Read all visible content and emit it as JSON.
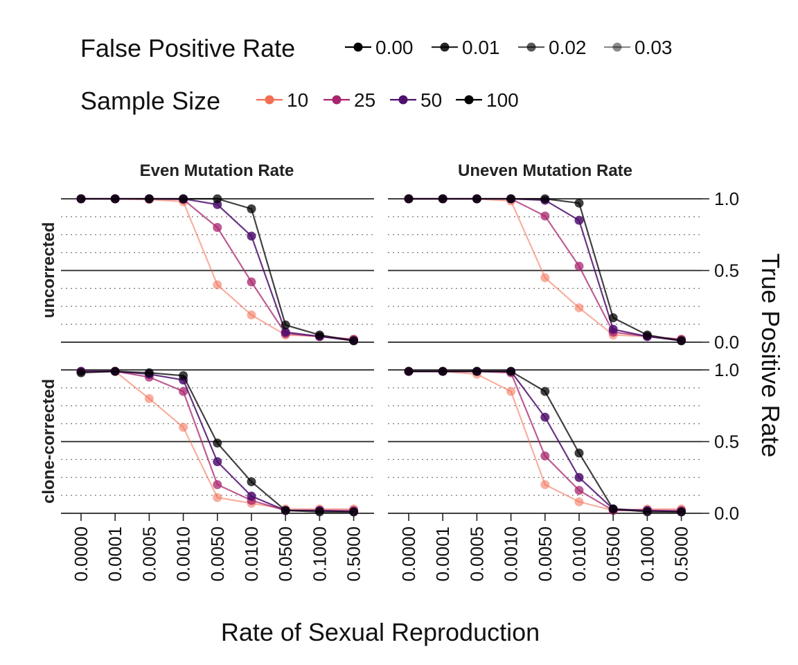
{
  "chart_data": {
    "type": "line",
    "x_axis_title": "Rate of Sexual Reproduction",
    "y_axis_title": "True Positive Rate",
    "x_categories": [
      "0.0000",
      "0.0001",
      "0.0005",
      "0.0010",
      "0.0050",
      "0.0100",
      "0.0500",
      "0.1000",
      "0.5000"
    ],
    "ylim": [
      0,
      1
    ],
    "y_ticks": [
      "0.0",
      "0.5",
      "1.0"
    ],
    "y_tick_values": [
      0,
      0.5,
      1
    ],
    "minor_grid_step": 0.125,
    "legend_position": "top",
    "legends": {
      "false_positive_rate": {
        "title": "False Positive Rate",
        "entries": [
          "0.00",
          "0.01",
          "0.02",
          "0.03"
        ],
        "opacities": [
          1.0,
          0.85,
          0.65,
          0.45
        ]
      },
      "sample_size": {
        "title": "Sample Size",
        "entries": [
          "10",
          "25",
          "50",
          "100"
        ],
        "colors": [
          "#F36E52",
          "#A8246E",
          "#4F0F6E",
          "#000000"
        ]
      }
    },
    "columns": [
      "Even Mutation Rate",
      "Uneven Mutation Rate"
    ],
    "rows": [
      "uncorrected",
      "clone-corrected"
    ],
    "panels": [
      {
        "row": "uncorrected",
        "column": "Even Mutation Rate",
        "series": [
          {
            "sample_size": "10",
            "values": [
              1.0,
              1.0,
              0.995,
              0.98,
              0.4,
              0.19,
              0.05,
              0.04,
              0.02
            ]
          },
          {
            "sample_size": "25",
            "values": [
              1.0,
              1.0,
              1.0,
              0.995,
              0.8,
              0.42,
              0.06,
              0.04,
              0.02
            ]
          },
          {
            "sample_size": "50",
            "values": [
              1.0,
              1.0,
              1.0,
              1.0,
              0.96,
              0.74,
              0.07,
              0.04,
              0.01
            ]
          },
          {
            "sample_size": "100",
            "values": [
              1.0,
              1.0,
              1.0,
              1.0,
              1.0,
              0.93,
              0.12,
              0.05,
              0.01
            ]
          }
        ]
      },
      {
        "row": "uncorrected",
        "column": "Uneven Mutation Rate",
        "series": [
          {
            "sample_size": "10",
            "values": [
              1.0,
              1.0,
              1.0,
              0.985,
              0.45,
              0.24,
              0.05,
              0.04,
              0.02
            ]
          },
          {
            "sample_size": "25",
            "values": [
              1.0,
              1.0,
              1.0,
              1.0,
              0.88,
              0.53,
              0.07,
              0.04,
              0.02
            ]
          },
          {
            "sample_size": "50",
            "values": [
              1.0,
              1.0,
              1.0,
              1.0,
              0.99,
              0.85,
              0.09,
              0.04,
              0.01
            ]
          },
          {
            "sample_size": "100",
            "values": [
              1.0,
              1.0,
              1.0,
              1.0,
              1.0,
              0.97,
              0.17,
              0.05,
              0.01
            ]
          }
        ]
      },
      {
        "row": "clone-corrected",
        "column": "Even Mutation Rate",
        "series": [
          {
            "sample_size": "10",
            "values": [
              0.99,
              0.99,
              0.8,
              0.6,
              0.11,
              0.07,
              0.03,
              0.03,
              0.03
            ]
          },
          {
            "sample_size": "25",
            "values": [
              0.99,
              0.99,
              0.95,
              0.85,
              0.2,
              0.09,
              0.02,
              0.02,
              0.02
            ]
          },
          {
            "sample_size": "50",
            "values": [
              0.99,
              0.99,
              0.97,
              0.93,
              0.36,
              0.12,
              0.02,
              0.02,
              0.01
            ]
          },
          {
            "sample_size": "100",
            "values": [
              0.98,
              0.99,
              0.98,
              0.96,
              0.49,
              0.22,
              0.02,
              0.01,
              0.01
            ]
          }
        ]
      },
      {
        "row": "clone-corrected",
        "column": "Uneven Mutation Rate",
        "series": [
          {
            "sample_size": "10",
            "values": [
              0.99,
              0.99,
              0.97,
              0.85,
              0.2,
              0.08,
              0.02,
              0.03,
              0.03
            ]
          },
          {
            "sample_size": "25",
            "values": [
              0.99,
              0.99,
              0.99,
              0.98,
              0.4,
              0.16,
              0.02,
              0.02,
              0.02
            ]
          },
          {
            "sample_size": "50",
            "values": [
              0.99,
              0.99,
              0.99,
              0.99,
              0.67,
              0.25,
              0.03,
              0.02,
              0.01
            ]
          },
          {
            "sample_size": "100",
            "values": [
              0.99,
              0.99,
              0.99,
              0.99,
              0.85,
              0.42,
              0.03,
              0.01,
              0.01
            ]
          }
        ]
      }
    ]
  }
}
